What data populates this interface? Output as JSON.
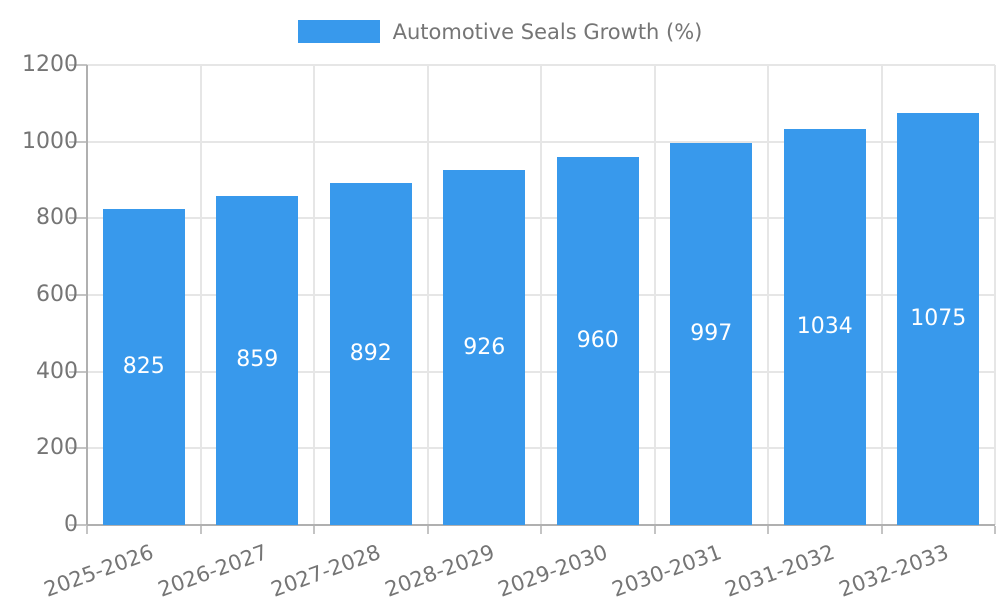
{
  "chart_data": {
    "type": "bar",
    "title": "",
    "legend_label": "Automotive Seals Growth (%)",
    "legend_position": "top-center",
    "categories": [
      "2025-2026",
      "2026-2027",
      "2027-2028",
      "2028-2029",
      "2029-2030",
      "2030-2031",
      "2031-2032",
      "2032-2033"
    ],
    "values": [
      825,
      859,
      892,
      926,
      960,
      997,
      1034,
      1075
    ],
    "value_labels": [
      "825",
      "859",
      "892",
      "926",
      "960",
      "997",
      "1034",
      "1075"
    ],
    "y_ticks": [
      0,
      200,
      400,
      600,
      800,
      1000,
      1200
    ],
    "y_tick_labels": [
      "0",
      "200",
      "400",
      "600",
      "800",
      "1000",
      "1200"
    ],
    "ylim": [
      0,
      1200
    ],
    "xlabel": "",
    "ylabel": "",
    "grid": true,
    "colors": {
      "bar": "#3899EC",
      "axis_text": "#757575",
      "value_text": "#ffffff",
      "gridline": "#e6e6e6",
      "axis_line": "#b0b0b0",
      "tick": "#c4c4c4",
      "background": "#ffffff"
    }
  }
}
